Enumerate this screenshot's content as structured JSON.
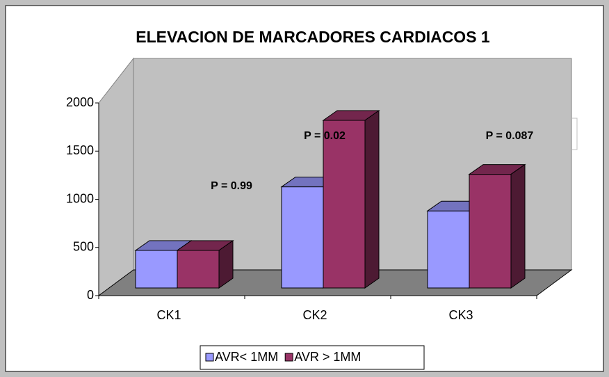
{
  "chart_data": {
    "type": "bar3d",
    "title": "ELEVACION DE MARCADORES CARDIACOS 1",
    "categories": [
      "CK1",
      "CK2",
      "CK3"
    ],
    "series": [
      {
        "name": "AVR< 1MM",
        "color": "#9999ff",
        "values": [
          390,
          1050,
          800
        ]
      },
      {
        "name": "AVR > 1MM",
        "color": "#993366",
        "values": [
          390,
          1740,
          1180
        ]
      }
    ],
    "annotations": [
      "P = 0.99",
      "P =  0.02",
      "P =  0.087"
    ],
    "ylim": [
      0,
      2000
    ],
    "yticks": [
      0,
      500,
      1000,
      1500,
      2000
    ],
    "grid": false,
    "legend": "bottom"
  }
}
